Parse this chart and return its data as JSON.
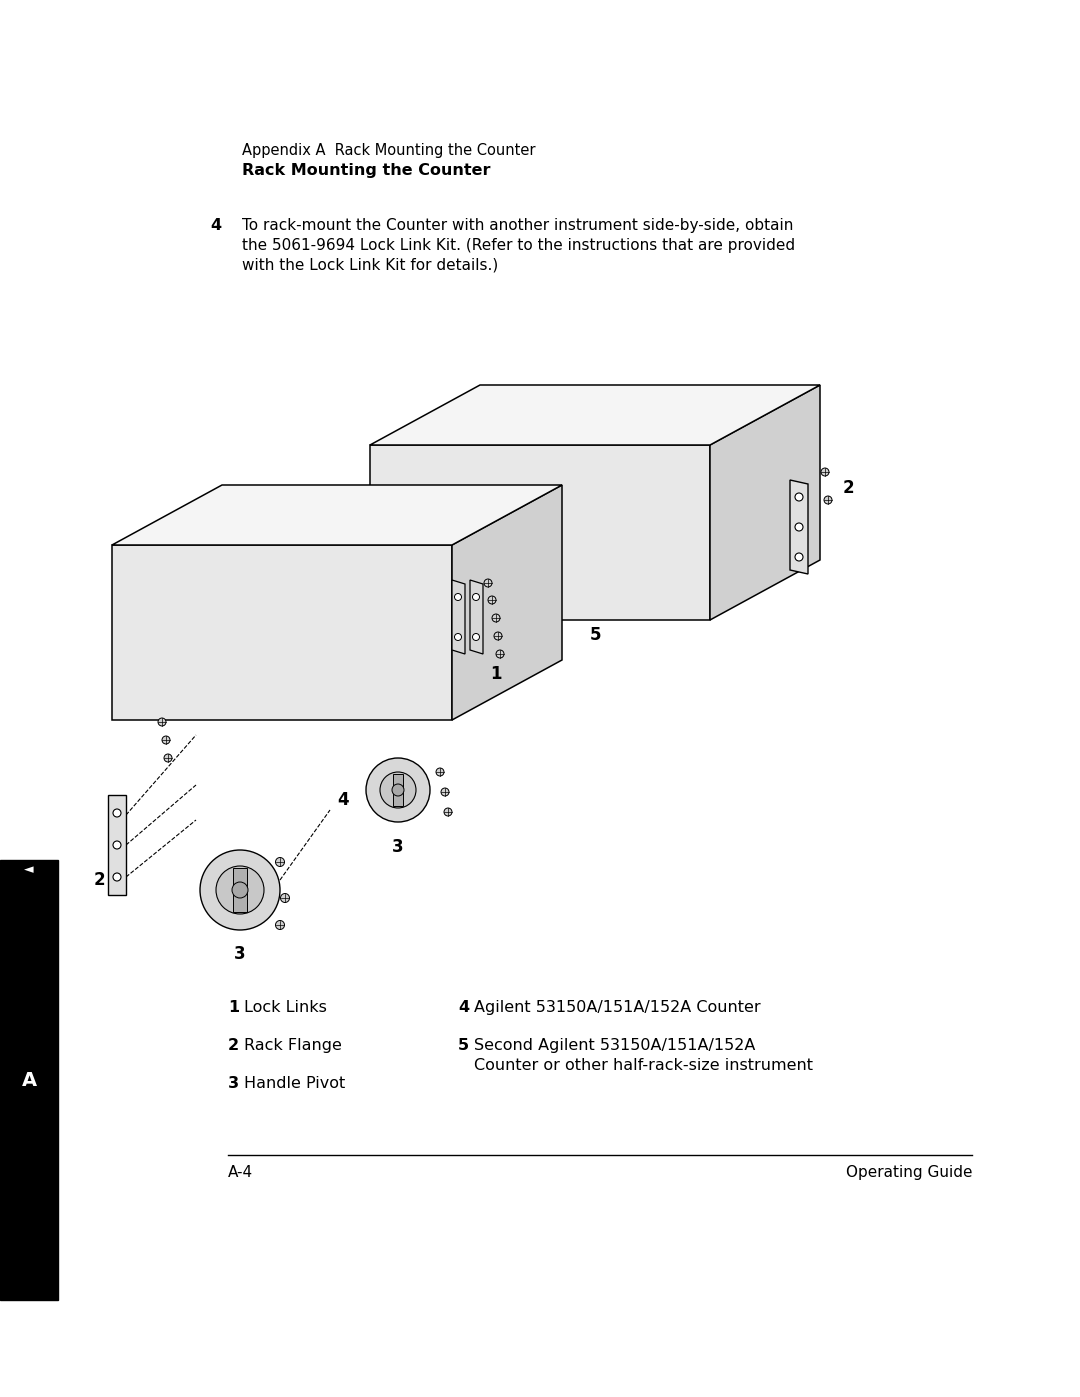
{
  "page_background": "#ffffff",
  "header_line1": "Appendix A  Rack Mounting the Counter",
  "header_line2": "Rack Mounting the Counter",
  "step_number": "4",
  "step_text_line1": "To rack-mount the Counter with another instrument side-by-side, obtain",
  "step_text_line2": "the 5061-9694 Lock Link Kit. (Refer to the instructions that are provided",
  "step_text_line3": "with the Lock Link Kit for details.)",
  "legend_1_num": "1",
  "legend_1_text": "Lock Links",
  "legend_2_num": "2",
  "legend_2_text": "Rack Flange",
  "legend_3_num": "3",
  "legend_3_text": "Handle Pivot",
  "legend_4_num": "4",
  "legend_4_text": "Agilent 53150A/151A/152A Counter",
  "legend_5_num": "5",
  "legend_5_text_line1": "Second Agilent 53150A/151A/152A",
  "legend_5_text_line2": "Counter or other half-rack-size instrument",
  "footer_left": "A-4",
  "footer_right": "Operating Guide",
  "sidebar_color": "#000000",
  "sidebar_label": "A",
  "line_color": "#000000",
  "fill_light": "#f0f0f0",
  "fill_mid": "#d8d8d8",
  "fill_dark": "#b0b0b0"
}
